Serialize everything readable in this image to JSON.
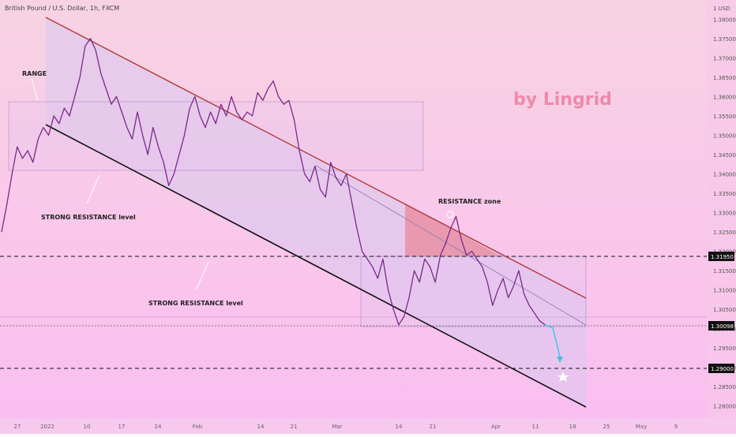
{
  "chart_data": {
    "type": "candlestick",
    "title": "British Pound / U.S. Dollar, 1h, FXCM",
    "watermark": "by Lingrid",
    "currency_label": "1 USD",
    "y_ticks": [
      "1.38000",
      "1.37500",
      "1.37000",
      "1.36500",
      "1.36000",
      "1.35500",
      "1.35000",
      "1.34500",
      "1.34000",
      "1.33500",
      "1.33000",
      "1.32500",
      "1.32000",
      "1.31500",
      "1.31000",
      "1.30500",
      "1.30000",
      "1.29500",
      "1.29000",
      "1.28500",
      "1.28000"
    ],
    "x_ticks": [
      "27",
      "2022",
      "10",
      "17",
      "24",
      "Feb",
      "14",
      "21",
      "Mar",
      "14",
      "21",
      "Apr",
      "11",
      "18",
      "25",
      "May",
      "9"
    ],
    "ylim": [
      1.2775,
      1.3825
    ],
    "levels": [
      {
        "value": 1.3195,
        "label": "1.31950",
        "style": "dashed"
      },
      {
        "value": 1.30098,
        "label": "1.30098",
        "style": "solid"
      },
      {
        "value": 1.29,
        "label": "1.29000",
        "style": "dashed"
      }
    ],
    "annotations": {
      "range": "RANGE",
      "strong_resistance_1": "STRONG RESISTANCE level",
      "strong_resistance_2": "STRONG RESISTANCE level",
      "resistance_zone": "RESISTANCE zone"
    },
    "colors": {
      "background_top": "#f6cfe0",
      "background_bottom": "#fbbdf0",
      "upper_trendline": "#b33a3a",
      "lower_trendline": "#111111",
      "price": "#7a2a8a",
      "forecast_arrow": "#3ec6e6"
    },
    "price_path": [
      1.325,
      1.332,
      1.34,
      1.347,
      1.344,
      1.346,
      1.343,
      1.349,
      1.352,
      1.35,
      1.355,
      1.353,
      1.357,
      1.355,
      1.36,
      1.365,
      1.373,
      1.375,
      1.372,
      1.366,
      1.362,
      1.358,
      1.36,
      1.356,
      1.352,
      1.349,
      1.356,
      1.35,
      1.345,
      1.352,
      1.347,
      1.343,
      1.337,
      1.34,
      1.345,
      1.35,
      1.357,
      1.36,
      1.355,
      1.352,
      1.356,
      1.353,
      1.358,
      1.355,
      1.36,
      1.356,
      1.354,
      1.356,
      1.355,
      1.361,
      1.359,
      1.362,
      1.364,
      1.36,
      1.358,
      1.359,
      1.354,
      1.346,
      1.34,
      1.338,
      1.342,
      1.336,
      1.334,
      1.343,
      1.339,
      1.337,
      1.34,
      1.333,
      1.326,
      1.32,
      1.318,
      1.316,
      1.313,
      1.318,
      1.31,
      1.305,
      1.301,
      1.303,
      1.308,
      1.315,
      1.312,
      1.318,
      1.316,
      1.312,
      1.319,
      1.322,
      1.326,
      1.329,
      1.323,
      1.319,
      1.32,
      1.318,
      1.316,
      1.312,
      1.306,
      1.31,
      1.313,
      1.308,
      1.311,
      1.315,
      1.309,
      1.306,
      1.304,
      1.302,
      1.301
    ],
    "forecast_path": [
      1.301,
      1.2935
    ]
  }
}
